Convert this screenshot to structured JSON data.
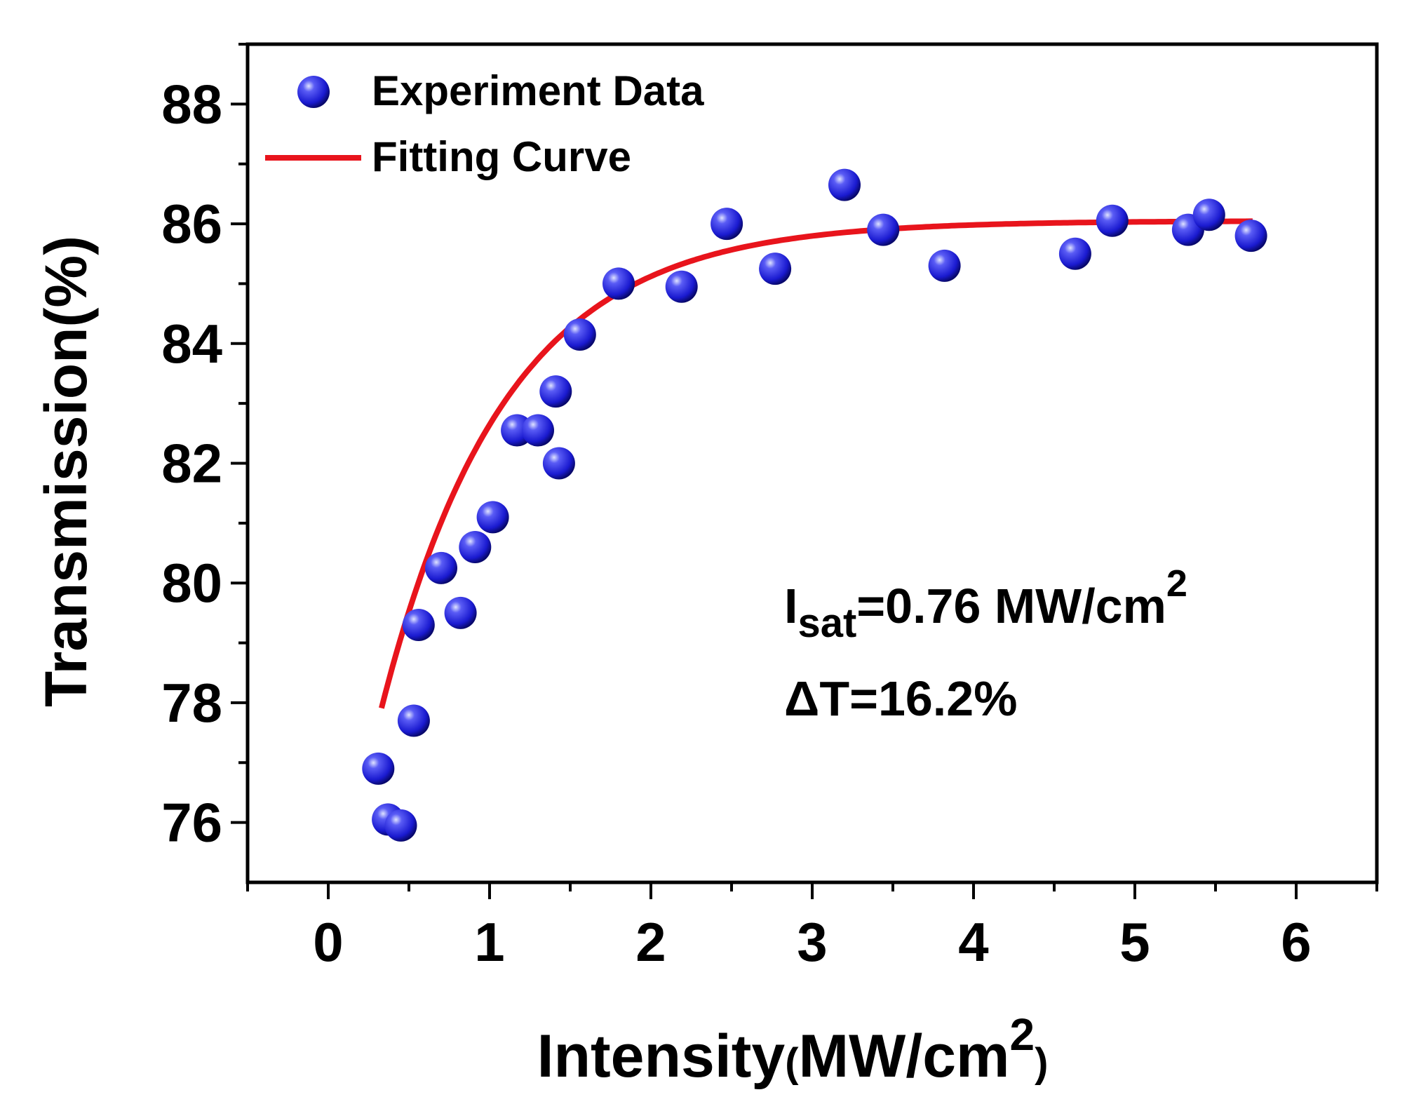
{
  "chart_data": {
    "type": "scatter",
    "xlabel": {
      "main": "Intensity",
      "unit_open": "(",
      "unit": "MW/cm",
      "unit_sup": "2",
      "unit_close": ")"
    },
    "ylabel": "Transmission(%)",
    "xlim": [
      -0.5,
      6.5
    ],
    "ylim": [
      75,
      89
    ],
    "xticks": [
      0,
      1,
      2,
      3,
      4,
      5,
      6
    ],
    "xtick_labels": [
      "0",
      "1",
      "2",
      "3",
      "4",
      "5",
      "6"
    ],
    "yticks": [
      76,
      78,
      80,
      82,
      84,
      86,
      88
    ],
    "ytick_labels": [
      "76",
      "78",
      "80",
      "82",
      "84",
      "86",
      "88"
    ],
    "grid": false,
    "legend_position": "top-left",
    "series": [
      {
        "name": "Experiment Data",
        "kind": "scatter",
        "color": "#1a1ad8",
        "points": [
          [
            0.31,
            76.9
          ],
          [
            0.37,
            76.05
          ],
          [
            0.45,
            75.95
          ],
          [
            0.53,
            77.7
          ],
          [
            0.56,
            79.3
          ],
          [
            0.7,
            80.25
          ],
          [
            0.82,
            79.5
          ],
          [
            0.91,
            80.6
          ],
          [
            1.02,
            81.1
          ],
          [
            1.17,
            82.55
          ],
          [
            1.3,
            82.55
          ],
          [
            1.41,
            83.2
          ],
          [
            1.43,
            82.0
          ],
          [
            1.56,
            84.15
          ],
          [
            1.8,
            85.0
          ],
          [
            2.19,
            84.95
          ],
          [
            2.47,
            86.0
          ],
          [
            2.77,
            85.25
          ],
          [
            3.2,
            86.65
          ],
          [
            3.44,
            85.9
          ],
          [
            3.82,
            85.3
          ],
          [
            4.63,
            85.5
          ],
          [
            4.86,
            86.05
          ],
          [
            5.33,
            85.9
          ],
          [
            5.46,
            86.15
          ],
          [
            5.72,
            85.8
          ]
        ]
      },
      {
        "name": "Fitting Curve",
        "kind": "line",
        "color": "#e8141c",
        "model": {
          "a": 86.05,
          "b": 12.5,
          "k": 1.3,
          "x_start": 0.33,
          "x_end": 5.73
        }
      }
    ],
    "annotations": {
      "isat_main": "I",
      "isat_sub": "sat",
      "isat_value": "=0.76 MW/cm",
      "isat_sup": "2",
      "delta_t": "ΔT=16.2%"
    }
  }
}
